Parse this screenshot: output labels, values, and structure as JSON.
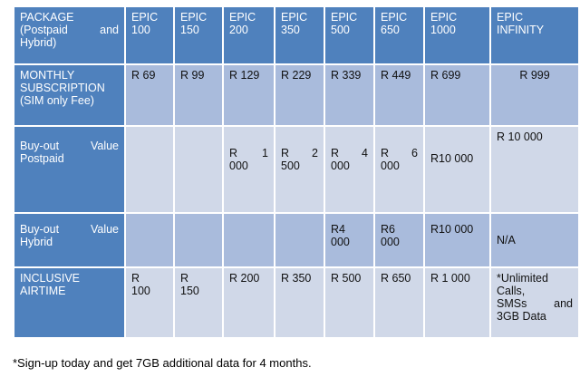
{
  "header": {
    "package_label_line1": "PACKAGE",
    "package_label_line2_a": "(Postpaid",
    "package_label_line2_b": "and",
    "package_label_line3": "Hybrid)",
    "plans": [
      {
        "line1": "EPIC",
        "line2": "100"
      },
      {
        "line1": "EPIC",
        "line2": "150"
      },
      {
        "line1": "EPIC",
        "line2": "200"
      },
      {
        "line1": "EPIC",
        "line2": "350"
      },
      {
        "line1": "EPIC",
        "line2": "500"
      },
      {
        "line1": "EPIC",
        "line2": "650"
      },
      {
        "line1": "EPIC",
        "line2": "1000"
      },
      {
        "line1": "EPIC",
        "line2": "INFINITY"
      }
    ]
  },
  "rows": {
    "monthly": {
      "label_line1": "MONTHLY",
      "label_line2": "SUBSCRIPTION",
      "label_line3": "(SIM only Fee)",
      "values": [
        "R 69",
        "R 99",
        "R 129",
        "R 229",
        "R 339",
        "R 449",
        "R 699",
        "R 999"
      ]
    },
    "postpaid": {
      "label_a": "Buy-out",
      "label_b": "Value",
      "label_line2": "Postpaid",
      "values": [
        {
          "l1a": "",
          "l1b": "",
          "l2": ""
        },
        {
          "l1a": "",
          "l1b": "",
          "l2": ""
        },
        {
          "l1a": "R",
          "l1b": "1",
          "l2": "000"
        },
        {
          "l1a": "R",
          "l1b": "2",
          "l2": "500"
        },
        {
          "l1a": "R",
          "l1b": "4",
          "l2": "000"
        },
        {
          "l1a": "R",
          "l1b": "6",
          "l2": "000"
        }
      ],
      "v1000": "R10 000",
      "vinf": "R 10 000"
    },
    "hybrid": {
      "label_a": "Buy-out",
      "label_b": "Value",
      "label_line2": "Hybrid",
      "v500_l1": "R4",
      "v500_l2": "000",
      "v650_l1": "R6",
      "v650_l2": "000",
      "v1000": "R10 000",
      "vinf": "N/A"
    },
    "airtime": {
      "label_line1": "INCLUSIVE",
      "label_line2": "AIRTIME",
      "v100_l1": "R",
      "v100_l2": "100",
      "v150_l1": "R",
      "v150_l2": "150",
      "v200": "R 200",
      "v350": "R 350",
      "v500": "R 500",
      "v650": "R 650",
      "v1000": "R 1 000",
      "vinf_l1": "*Unlimited",
      "vinf_l2": "Calls,",
      "vinf_l3a": "SMSs",
      "vinf_l3b": "and",
      "vinf_l4": "3GB Data"
    }
  },
  "footnote": "*Sign-up today and get 7GB additional data for 4 months."
}
